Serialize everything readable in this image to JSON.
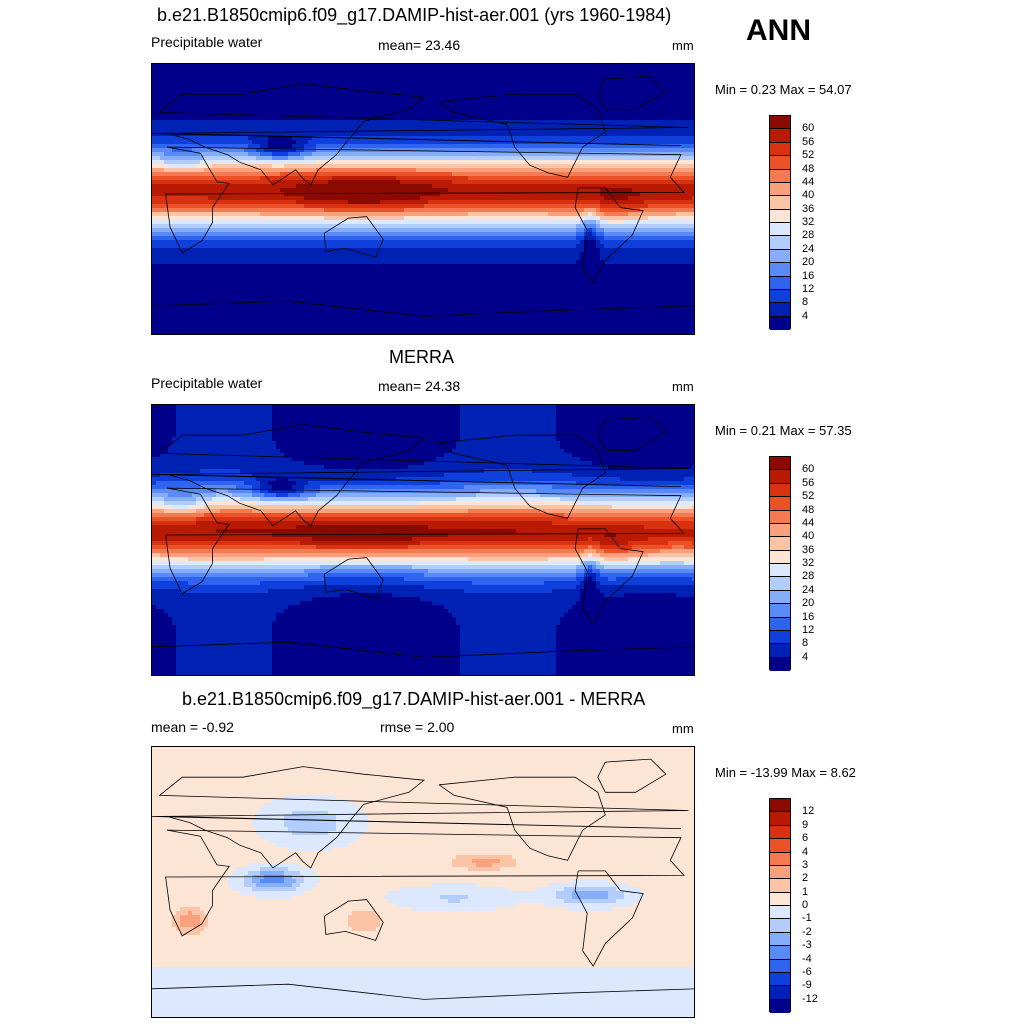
{
  "season": "ANN",
  "colors": {
    "abs": [
      "#00008a",
      "#0022b4",
      "#1040dc",
      "#2e64f0",
      "#5a8af5",
      "#86aef8",
      "#b2ccfb",
      "#dbe8fd",
      "#fde5d5",
      "#fcc4a6",
      "#f9a07c",
      "#f57a52",
      "#ec5228",
      "#d83210",
      "#b81a04",
      "#8a0a00"
    ],
    "diff": [
      "#00008a",
      "#0022b4",
      "#1040dc",
      "#2e64f0",
      "#5a8af5",
      "#86aef8",
      "#b2ccfb",
      "#dbe8fd",
      "#fde5d5",
      "#fcc4a6",
      "#f9a07c",
      "#f57a52",
      "#ec5228",
      "#d83210",
      "#b81a04",
      "#8a0a00"
    ]
  },
  "panels": [
    {
      "title": "b.e21.B1850cmip6.f09_g17.DAMIP-hist-aer.001 (yrs 1960-1984)",
      "left_label": "Precipitable water",
      "center_label": "mean=  23.46",
      "units": "mm",
      "minmax": "Min =   0.23 Max =  54.07",
      "levels": [
        "60",
        "56",
        "52",
        "48",
        "44",
        "40",
        "36",
        "32",
        "28",
        "24",
        "20",
        "16",
        "12",
        "8",
        "4"
      ]
    },
    {
      "title": "MERRA",
      "left_label": "Precipitable water",
      "center_label": "mean=  24.38",
      "units": "mm",
      "minmax": "Min =   0.21 Max =  57.35",
      "levels": [
        "60",
        "56",
        "52",
        "48",
        "44",
        "40",
        "36",
        "32",
        "28",
        "24",
        "20",
        "16",
        "12",
        "8",
        "4"
      ]
    },
    {
      "title": "b.e21.B1850cmip6.f09_g17.DAMIP-hist-aer.001 - MERRA",
      "left_label": "mean =  -0.92",
      "center_label": "rmse =   2.00",
      "units": "mm",
      "minmax": "Min = -13.99 Max =   8.62",
      "levels": [
        "12",
        "9",
        "6",
        "4",
        "3",
        "2",
        "1",
        "0",
        "-1",
        "-2",
        "-3",
        "-4",
        "-6",
        "-9",
        "-12"
      ]
    }
  ],
  "chart_data": [
    {
      "type": "heatmap",
      "title": "b.e21.B1850cmip6.f09_g17.DAMIP-hist-aer.001 (yrs 1960-1984)",
      "variable": "Precipitable water",
      "units": "mm",
      "mean": 23.46,
      "min": 0.23,
      "max": 54.07,
      "contour_levels": [
        4,
        8,
        12,
        16,
        20,
        24,
        28,
        32,
        36,
        40,
        44,
        48,
        52,
        56,
        60
      ]
    },
    {
      "type": "heatmap",
      "title": "MERRA",
      "variable": "Precipitable water",
      "units": "mm",
      "mean": 24.38,
      "min": 0.21,
      "max": 57.35,
      "contour_levels": [
        4,
        8,
        12,
        16,
        20,
        24,
        28,
        32,
        36,
        40,
        44,
        48,
        52,
        56,
        60
      ]
    },
    {
      "type": "heatmap",
      "title": "b.e21.B1850cmip6.f09_g17.DAMIP-hist-aer.001 - MERRA",
      "units": "mm",
      "mean": -0.92,
      "rmse": 2.0,
      "min": -13.99,
      "max": 8.62,
      "contour_levels": [
        -12,
        -9,
        -6,
        -4,
        -3,
        -2,
        -1,
        0,
        1,
        2,
        3,
        4,
        6,
        9,
        12
      ]
    }
  ]
}
